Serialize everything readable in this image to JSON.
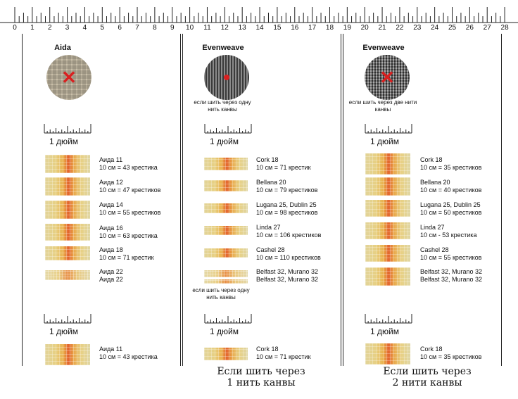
{
  "ruler": {
    "numbers": [
      "0",
      "1",
      "2",
      "3",
      "4",
      "5",
      "6",
      "7",
      "8",
      "9",
      "10",
      "11",
      "12",
      "13",
      "14",
      "15",
      "16",
      "17",
      "18",
      "19",
      "20",
      "21",
      "22",
      "23",
      "24",
      "25",
      "26",
      "27",
      "28"
    ]
  },
  "panels": {
    "aida": {
      "title": "Aida",
      "inch_label": "1 дюйм",
      "inch_label_2": "1 дюйм",
      "items": [
        {
          "name": "Аида 11",
          "count": "10 см = 43 крестика"
        },
        {
          "name": "Аида 12",
          "count": "10 см = 47 крестиков"
        },
        {
          "name": "Аида 14",
          "count": "10 см = 55 крестиков"
        },
        {
          "name": "Аида 16",
          "count": "10 см = 63 крестика"
        },
        {
          "name": "Аида 18",
          "count": "10 см = 71 крестик"
        },
        {
          "name": "Аида 22",
          "count": ""
        },
        {
          "name": "Аида 22",
          "count": ""
        }
      ],
      "bottom_item": {
        "name": "Аида 11",
        "count": "10 см = 43 крестика"
      }
    },
    "even1": {
      "title": "Evenweave",
      "note": "если шить через одну нить канвы",
      "note_2": "если шить через одну нить канвы",
      "inch_label": "1 дюйм",
      "inch_label_2": "1 дюйм",
      "items": [
        {
          "name": "Cork 18",
          "count": "10 см = 71 крестик"
        },
        {
          "name": "Bellana 20",
          "count": "10 см = 79 крестиков"
        },
        {
          "name": "Lugana 25, Dublin 25",
          "count": "10 см = 98 крестиков"
        },
        {
          "name": "Linda 27",
          "count": "10 см = 106 крестиков"
        },
        {
          "name": "Cashel 28",
          "count": "10 см = 110 крестиков"
        },
        {
          "name": "Belfast 32, Murano 32",
          "count": ""
        },
        {
          "name": "Belfast 32, Murano 32",
          "count": ""
        }
      ],
      "bottom_item": {
        "name": "Cork 18",
        "count": "10 см = 71 крестик"
      },
      "caption_line1": "Если шить через",
      "caption_line2": "1 нить канвы"
    },
    "even2": {
      "title": "Evenweave",
      "note": "если шить через две нити канвы",
      "inch_label": "1 дюйм",
      "inch_label_2": "1 дюйм",
      "items": [
        {
          "name": "Cork 18",
          "count": "10 см = 35 крестиков"
        },
        {
          "name": "Bellana 20",
          "count": "10 см = 40 крестиков"
        },
        {
          "name": "Lugana 25, Dublin 25",
          "count": "10 см = 50 крестиков"
        },
        {
          "name": "Linda 27",
          "count": "10 см - 53 крестика"
        },
        {
          "name": "Cashel 28",
          "count": "10 см = 55 крестиков"
        },
        {
          "name": "Belfast 32, Murano 32",
          "count": ""
        },
        {
          "name": "Belfast 32, Murano 32",
          "count": ""
        }
      ],
      "bottom_item": {
        "name": "Cork 18",
        "count": "10 см = 35 крестиков"
      },
      "caption_line1": "Если шить через",
      "caption_line2": "2 нити канвы"
    }
  }
}
